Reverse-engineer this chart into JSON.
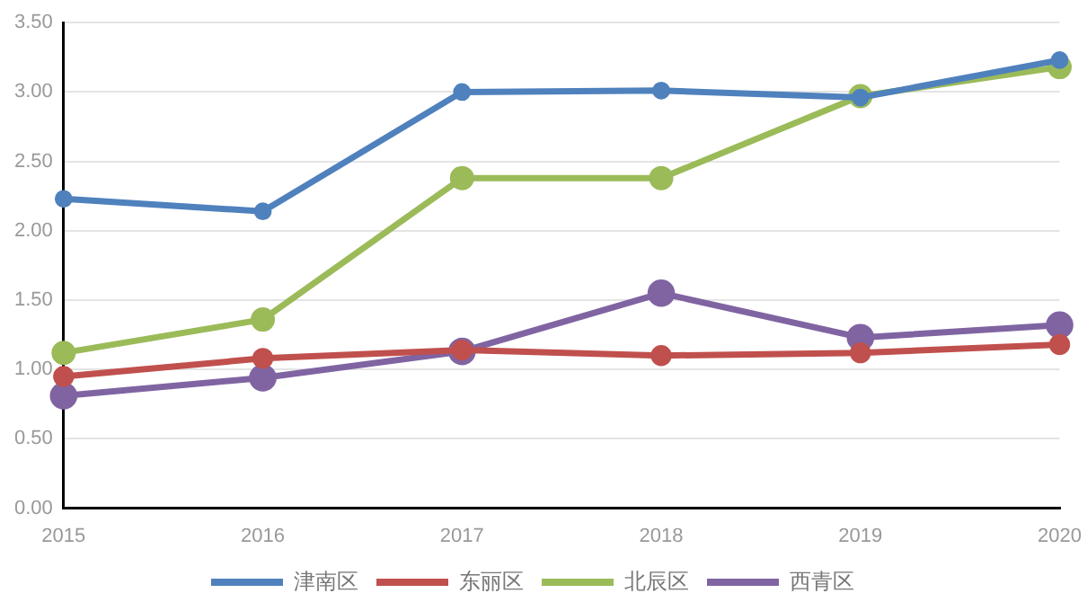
{
  "chart_data": {
    "type": "line",
    "categories": [
      "2015",
      "2016",
      "2017",
      "2018",
      "2019",
      "2020"
    ],
    "series": [
      {
        "name": "津南区",
        "color": "#4f81bd",
        "values": [
          2.23,
          2.14,
          3.0,
          3.01,
          2.96,
          3.23
        ]
      },
      {
        "name": "东丽区",
        "color": "#c0504d",
        "values": [
          0.95,
          1.08,
          1.14,
          1.1,
          1.12,
          1.18
        ]
      },
      {
        "name": "北辰区",
        "color": "#9bbb59",
        "values": [
          1.12,
          1.36,
          2.38,
          2.38,
          2.97,
          3.18
        ]
      },
      {
        "name": "西青区",
        "color": "#8064a2",
        "values": [
          0.81,
          0.94,
          1.13,
          1.55,
          1.23,
          1.32
        ]
      }
    ],
    "ylim": [
      0,
      3.5
    ],
    "yticks": [
      {
        "value": 0,
        "label": "0.00"
      },
      {
        "value": 0.5,
        "label": "0.50"
      },
      {
        "value": 1,
        "label": "1.00"
      },
      {
        "value": 1.5,
        "label": "1.50"
      },
      {
        "value": 2,
        "label": "2.00"
      },
      {
        "value": 2.5,
        "label": "2.50"
      },
      {
        "value": 3,
        "label": "3.00"
      },
      {
        "value": 3.5,
        "label": "3.50"
      }
    ],
    "grid": "y",
    "legend": "bottom",
    "marker": "circle",
    "line_style": "solid"
  }
}
